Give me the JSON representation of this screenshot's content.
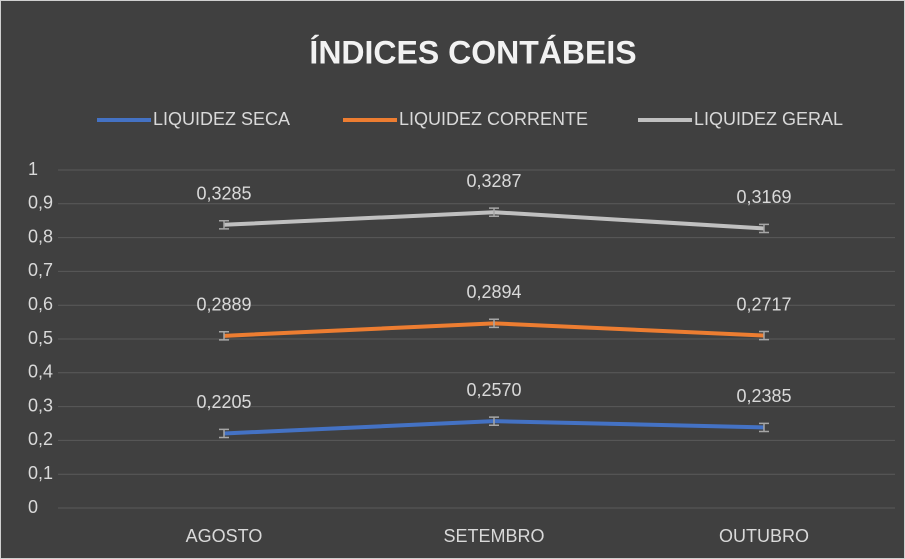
{
  "chart_data": {
    "type": "line",
    "stacked": true,
    "title": "ÍNDICES CONTÁBEIS",
    "categories": [
      "AGOSTO",
      "SETEMBRO",
      "OUTUBRO"
    ],
    "series": [
      {
        "name": "LIQUIDEZ SECA",
        "color": "#4472c4",
        "values": [
          0.2205,
          0.257,
          0.2385
        ],
        "value_labels": [
          "0,2205",
          "0,2570",
          "0,2385"
        ],
        "errors": [
          0.012,
          0.012,
          0.012
        ]
      },
      {
        "name": "LIQUIDEZ CORRENTE",
        "color": "#ed7d31",
        "values": [
          0.2889,
          0.2894,
          0.2717
        ],
        "value_labels": [
          "0,2889",
          "0,2894",
          "0,2717"
        ],
        "errors": [
          0.012,
          0.012,
          0.012
        ]
      },
      {
        "name": "LIQUIDEZ GERAL",
        "color": "#c0c0c0",
        "values": [
          0.3285,
          0.3287,
          0.3169
        ],
        "value_labels": [
          "0,3285",
          "0,3287",
          "0,3169"
        ],
        "errors": [
          0.012,
          0.012,
          0.012
        ]
      }
    ],
    "ylim": [
      0,
      1
    ],
    "yticks": [
      0,
      {
        "value": 0.1,
        "label": "0,1"
      },
      {
        "value": 0.2,
        "label": "0,2"
      },
      {
        "value": 0.3,
        "label": "0,3"
      },
      {
        "value": 0.4,
        "label": "0,4"
      },
      {
        "value": 0.5,
        "label": "0,5"
      },
      {
        "value": 0.6,
        "label": "0,6"
      },
      {
        "value": 0.7,
        "label": "0,7"
      },
      {
        "value": 0.8,
        "label": "0,8"
      },
      {
        "value": 0.9,
        "label": "0,9"
      },
      1
    ],
    "grid": true,
    "legend": "top"
  }
}
